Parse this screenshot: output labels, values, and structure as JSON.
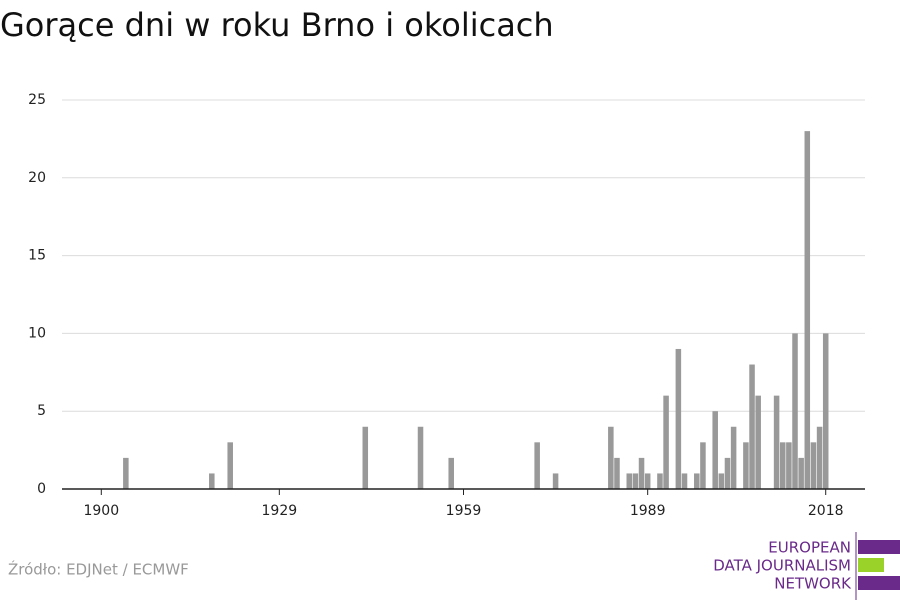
{
  "chart_data": {
    "type": "bar",
    "title": "Gorące dni w roku Brno i okolicach",
    "x": [
      1904,
      1918,
      1921,
      1943,
      1952,
      1957,
      1971,
      1974,
      1983,
      1984,
      1986,
      1987,
      1988,
      1989,
      1991,
      1992,
      1994,
      1995,
      1997,
      1998,
      2000,
      2001,
      2002,
      2003,
      2005,
      2006,
      2007,
      2010,
      2011,
      2012,
      2013,
      2014,
      2015,
      2016,
      2017,
      2018
    ],
    "values": [
      2,
      1,
      3,
      4,
      4,
      2,
      3,
      1,
      4,
      2,
      1,
      1,
      2,
      1,
      1,
      6,
      9,
      1,
      1,
      3,
      5,
      1,
      2,
      4,
      3,
      8,
      6,
      6,
      3,
      3,
      10,
      2,
      23,
      3,
      4,
      10
    ],
    "color": "#999999",
    "xlim": [
      1893.6,
      2024.4
    ],
    "xticks": [
      1900,
      1929,
      1959,
      1989,
      2018
    ],
    "ylim": [
      0,
      25
    ],
    "yticks": [
      0,
      5,
      10,
      15,
      20,
      25
    ],
    "grid": true,
    "source": "Źródło: EDJNet / ECMWF",
    "logo": [
      "EUROPEAN",
      "DATA JOURNALISM",
      "NETWORK"
    ]
  }
}
